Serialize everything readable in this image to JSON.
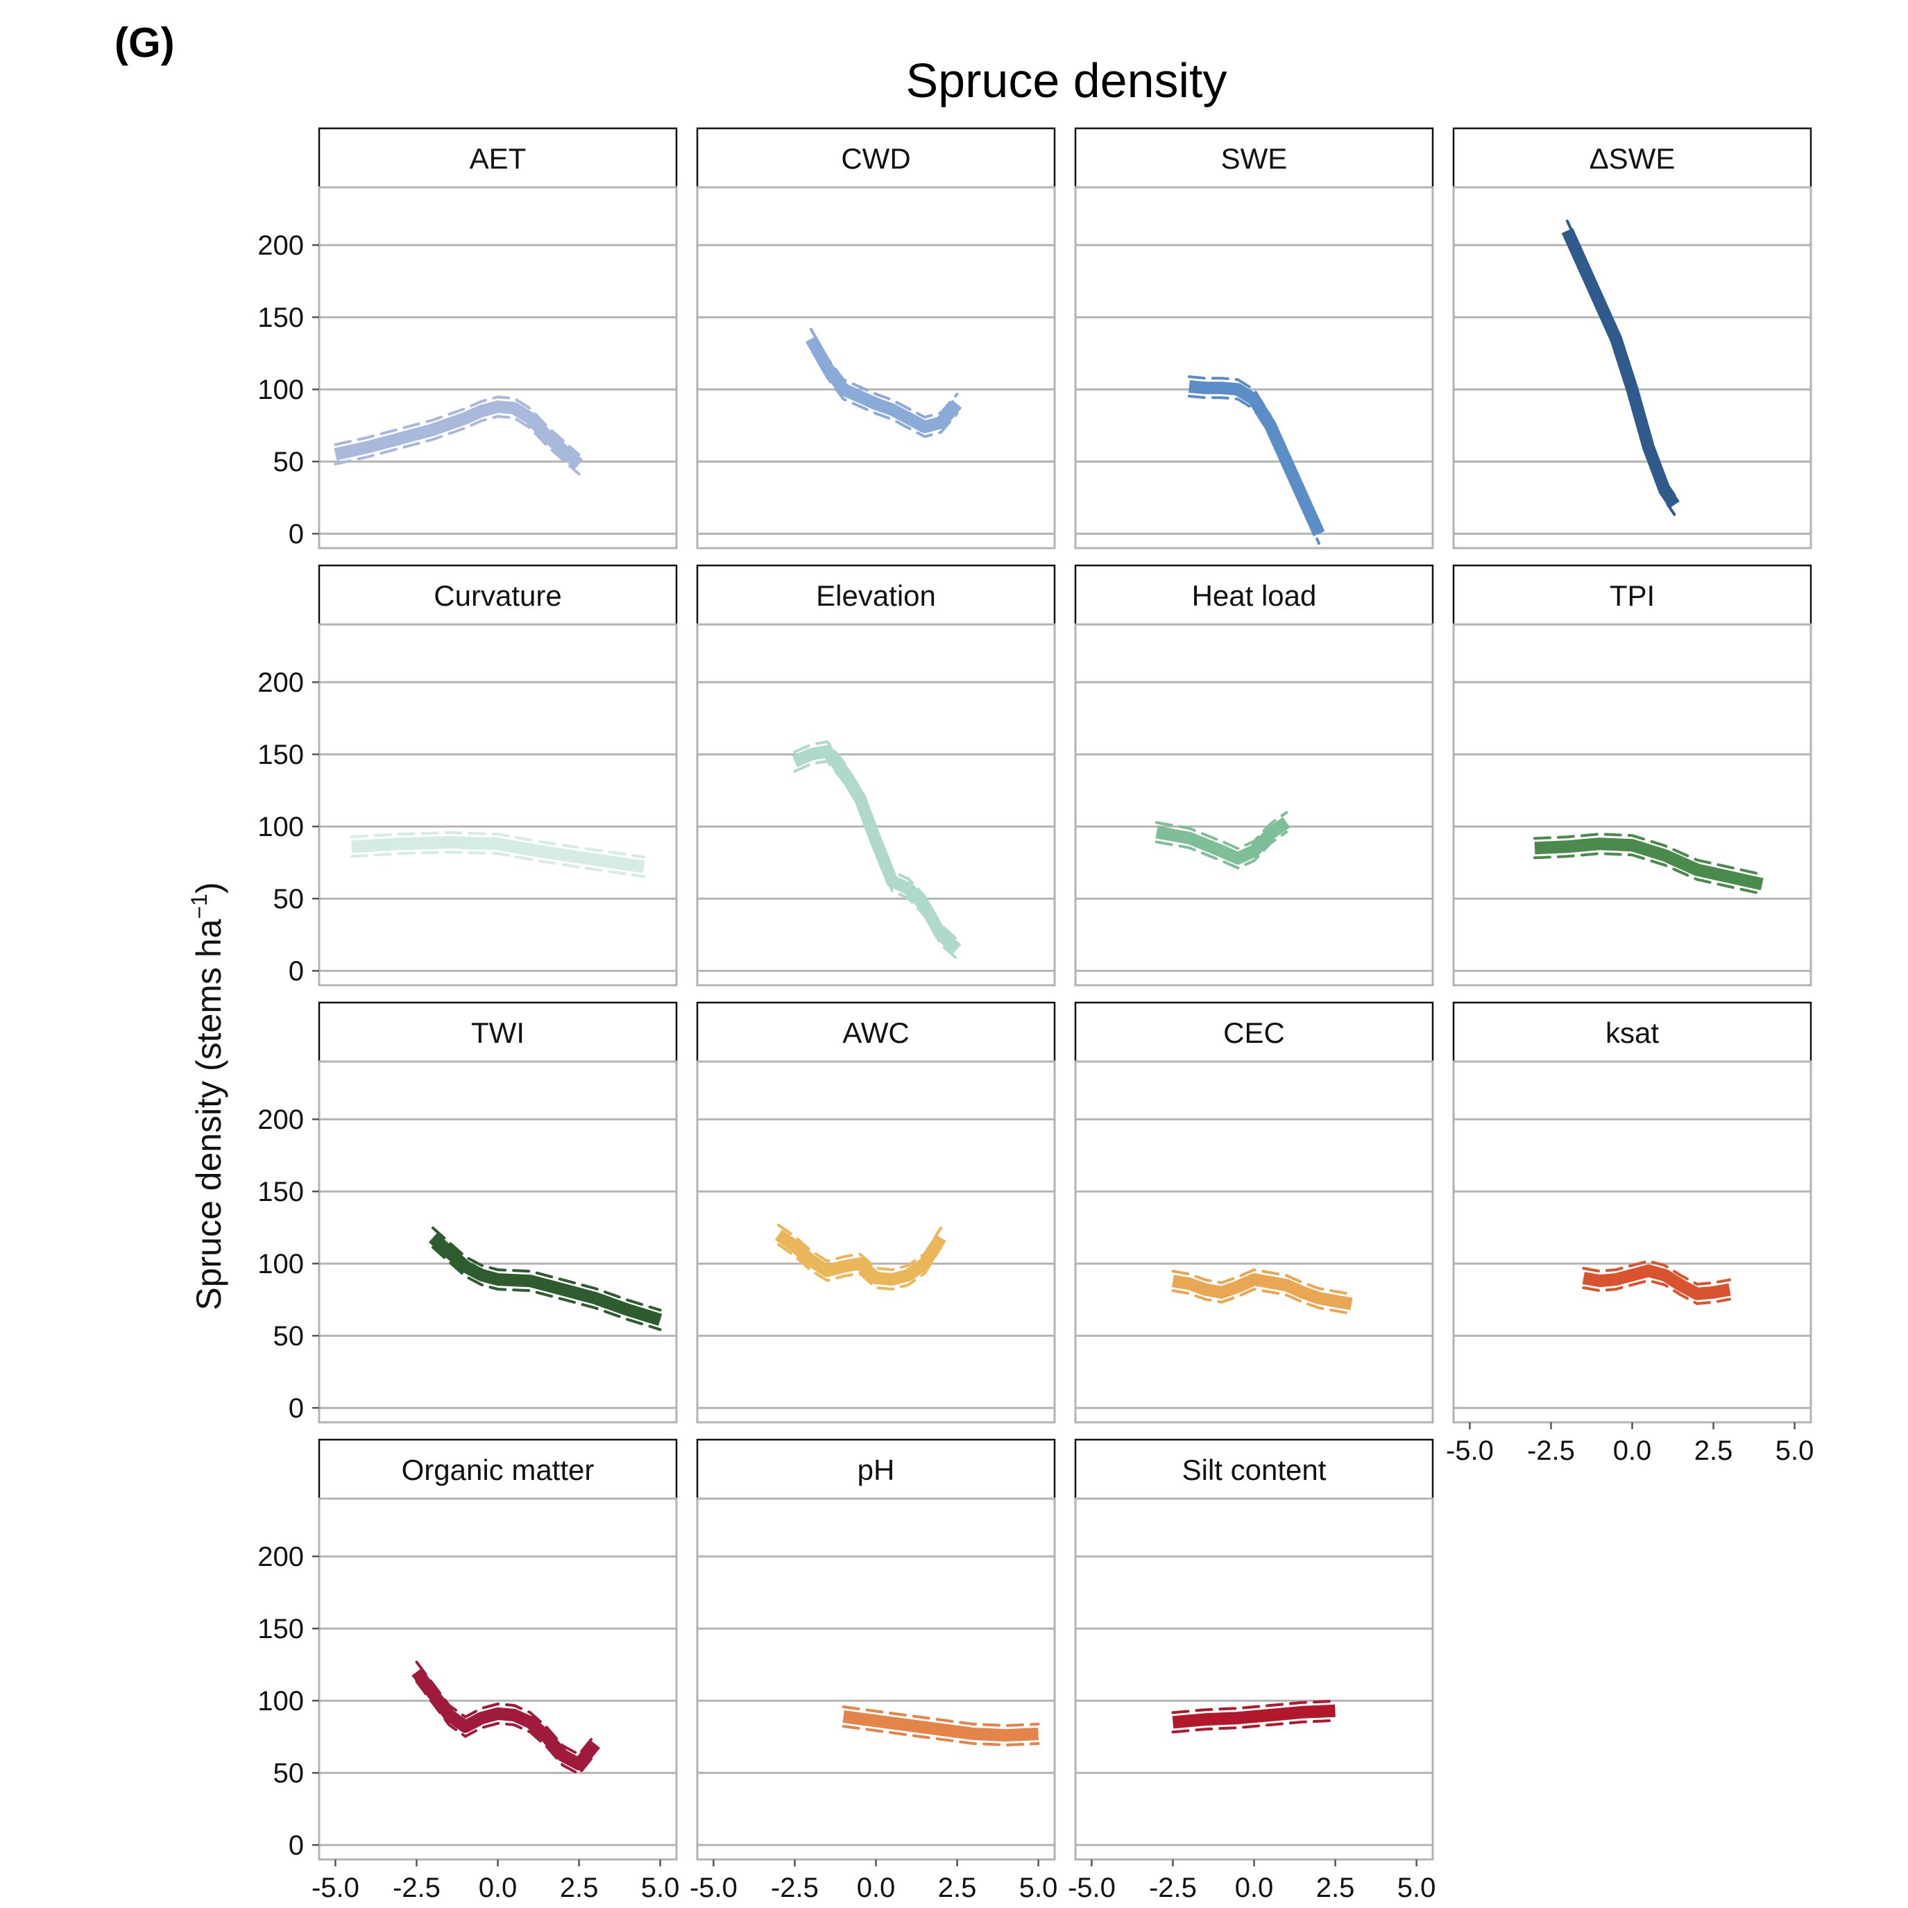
{
  "panel_label": "(G)",
  "chart_data": {
    "type": "line",
    "layout": "facet-grid",
    "title": "Spruce density",
    "ylabel": "Spruce density (stems ha",
    "ylabel_sup": "−1",
    "ylabel_close": ")",
    "xlim": [
      -5.5,
      5.5
    ],
    "ylim": [
      -10,
      240
    ],
    "x_ticks": [
      -5.0,
      -2.5,
      0.0,
      2.5,
      5.0
    ],
    "x_tick_labels": [
      "-5.0",
      "-2.5",
      "0.0",
      "2.5",
      "5.0"
    ],
    "y_ticks": [
      0,
      50,
      100,
      150,
      200
    ],
    "y_tick_labels": [
      "0",
      "50",
      "100",
      "150",
      "200"
    ],
    "grid": "horizontal",
    "facets": [
      {
        "name": "AET",
        "color": "#a9b9dc",
        "x": [
          -5,
          -4,
          -3,
          -2,
          -1,
          -0.5,
          0,
          0.5,
          1,
          1.5,
          2,
          2.5
        ],
        "y": [
          55,
          60,
          66,
          72,
          80,
          85,
          88,
          87,
          80,
          68,
          58,
          48
        ]
      },
      {
        "name": "CWD",
        "color": "#8aaad8",
        "x": [
          -2,
          -1.5,
          -1,
          -0.5,
          0,
          0.5,
          1,
          1.5,
          2,
          2.5
        ],
        "y": [
          135,
          115,
          100,
          95,
          90,
          86,
          80,
          74,
          77,
          90
        ]
      },
      {
        "name": "SWE",
        "color": "#5b8dc7",
        "x": [
          -2,
          -1.5,
          -1,
          -0.5,
          0,
          0.5,
          1,
          1.5,
          2
        ],
        "y": [
          102,
          101,
          101,
          100,
          93,
          75,
          50,
          25,
          0
        ]
      },
      {
        "name": "ΔSWE",
        "color": "#2f5a8c",
        "x": [
          -2,
          -1.5,
          -1,
          -0.5,
          0,
          0.5,
          1,
          1.3
        ],
        "y": [
          210,
          185,
          160,
          135,
          100,
          60,
          30,
          20
        ]
      },
      {
        "name": "Curvature",
        "color": "#d4ece4",
        "x": [
          -4.5,
          -3,
          -1.5,
          0,
          1.5,
          3,
          4.5
        ],
        "y": [
          86,
          88,
          89,
          88,
          82,
          77,
          72
        ]
      },
      {
        "name": "Elevation",
        "color": "#afd9cc",
        "x": [
          -2.5,
          -2,
          -1.5,
          -1,
          -0.5,
          0,
          0.5,
          1,
          1.5,
          2,
          2.5
        ],
        "y": [
          145,
          150,
          152,
          138,
          120,
          90,
          62,
          57,
          45,
          25,
          15
        ]
      },
      {
        "name": "Heat load",
        "color": "#7fbf97",
        "x": [
          -3,
          -2,
          -1,
          -0.5,
          0,
          0.5,
          1
        ],
        "y": [
          96,
          92,
          83,
          78,
          83,
          95,
          103
        ]
      },
      {
        "name": "TPI",
        "color": "#4a8a4c",
        "x": [
          -3,
          -2,
          -1,
          0,
          1,
          2,
          3,
          4
        ],
        "y": [
          85,
          86,
          88,
          87,
          80,
          70,
          65,
          60
        ]
      },
      {
        "name": "TWI",
        "color": "#2e5c2f",
        "x": [
          -2,
          -1.5,
          -1,
          -0.5,
          0,
          1,
          2,
          3,
          4,
          5
        ],
        "y": [
          118,
          108,
          98,
          92,
          89,
          88,
          82,
          76,
          68,
          61
        ]
      },
      {
        "name": "AWC",
        "color": "#ebb55a",
        "x": [
          -3,
          -2.5,
          -2,
          -1.5,
          -1,
          -0.5,
          0,
          0.5,
          1,
          1.5,
          2
        ],
        "y": [
          120,
          112,
          102,
          95,
          98,
          100,
          90,
          89,
          92,
          100,
          118
        ]
      },
      {
        "name": "CEC",
        "color": "#eaa753",
        "x": [
          -2.5,
          -2,
          -1.5,
          -1,
          -0.5,
          0,
          0.5,
          1,
          1.5,
          2,
          2.5,
          3
        ],
        "y": [
          88,
          86,
          82,
          80,
          84,
          89,
          87,
          85,
          80,
          76,
          74,
          72
        ]
      },
      {
        "name": "ksat",
        "color": "#d9532e",
        "x": [
          -1.5,
          -1,
          -0.5,
          0,
          0.5,
          1,
          1.5,
          2,
          2.5,
          3
        ],
        "y": [
          90,
          88,
          89,
          92,
          95,
          92,
          85,
          79,
          80,
          82
        ]
      },
      {
        "name": "Organic matter",
        "color": "#a01a3c",
        "x": [
          -2.5,
          -2,
          -1.5,
          -1,
          -0.5,
          0,
          0.5,
          1,
          1.5,
          2,
          2.5,
          3
        ],
        "y": [
          120,
          105,
          90,
          82,
          88,
          91,
          90,
          85,
          75,
          62,
          56,
          70
        ]
      },
      {
        "name": "pH",
        "color": "#e4834a",
        "x": [
          -1,
          0,
          1,
          2,
          3,
          4,
          5
        ],
        "y": [
          89,
          86,
          83,
          80,
          77,
          76,
          77
        ]
      },
      {
        "name": "Silt content",
        "color": "#b2182b",
        "x": [
          -2.5,
          -1.5,
          -0.5,
          0.5,
          1.5,
          2.5
        ],
        "y": [
          85,
          87,
          88,
          90,
          92,
          93
        ]
      }
    ]
  }
}
